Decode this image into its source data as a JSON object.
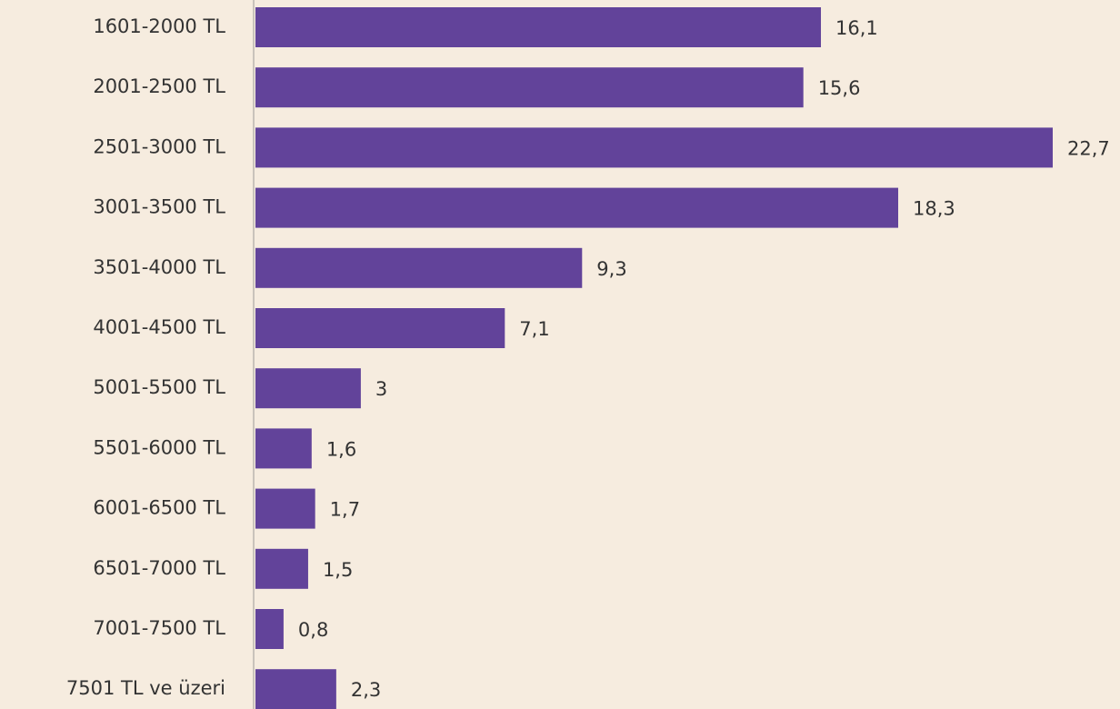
{
  "chart_data": {
    "type": "barh",
    "categories": [
      "1601-2000 TL",
      "2001-2500 TL",
      "2501-3000 TL",
      "3001-3500 TL",
      "3501-4000 TL",
      "4001-4500 TL",
      "5001-5500 TL",
      "5501-6000 TL",
      "6001-6500 TL",
      "6501-7000 TL",
      "7001-7500 TL",
      "7501 TL ve üzeri"
    ],
    "values": [
      16.1,
      15.6,
      22.7,
      18.3,
      9.3,
      7.1,
      3,
      1.6,
      1.7,
      1.5,
      0.8,
      2.3
    ],
    "value_labels": [
      "16,1",
      "15,6",
      "22,7",
      "18,3",
      "9,3",
      "7,1",
      "3",
      "1,6",
      "1,7",
      "1,5",
      "0,8",
      "2,3"
    ],
    "color": "#62439a"
  }
}
